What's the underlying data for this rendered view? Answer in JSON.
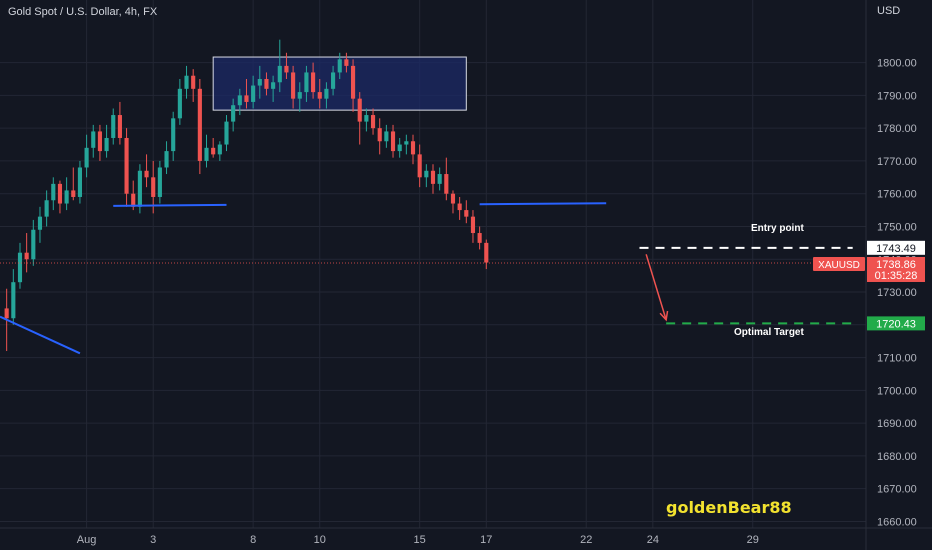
{
  "header": {
    "title": "Gold Spot / U.S. Dollar, 4h, FX",
    "currency": "USD"
  },
  "watermark": "goldenBear88",
  "annotations": {
    "entry_label": "Entry point",
    "target_label": "Optimal Target"
  },
  "badges": {
    "entry_price": "1743.49",
    "symbol": "XAUUSD",
    "last_price": "1738.86",
    "countdown": "01:35:28",
    "target_price": "1720.43"
  },
  "colors": {
    "background": "#131722",
    "grid": "#232734",
    "bull": "#26a69a",
    "bear": "#ef5350",
    "zone_fill": "#1c2a66",
    "zone_border": "#d9dce6",
    "support_line": "#2962ff",
    "entry_line": "#ffffff",
    "target_line": "#22ab4a",
    "arrow": "#ef5350",
    "axis_text": "#b2b5be"
  },
  "chart_data": {
    "type": "candlestick",
    "title": "Gold Spot / U.S. Dollar, 4h, FX",
    "ylim": [
      1658,
      1813
    ],
    "yticks": [
      1660,
      1670,
      1680,
      1690,
      1700,
      1710,
      1720,
      1730,
      1740,
      1750,
      1760,
      1770,
      1780,
      1790,
      1800
    ],
    "x_range_bars": [
      0,
      130
    ],
    "xticks": [
      {
        "label": "Aug",
        "bar": 13
      },
      {
        "label": "3",
        "bar": 23
      },
      {
        "label": "8",
        "bar": 38
      },
      {
        "label": "10",
        "bar": 48
      },
      {
        "label": "15",
        "bar": 63
      },
      {
        "label": "17",
        "bar": 73
      },
      {
        "label": "22",
        "bar": 88
      },
      {
        "label": "24",
        "bar": 98
      },
      {
        "label": "29",
        "bar": 113
      }
    ],
    "candles": [
      [
        1725,
        1731,
        1712,
        1722
      ],
      [
        1722,
        1737,
        1720,
        1733
      ],
      [
        1733,
        1745,
        1731,
        1742
      ],
      [
        1742,
        1748,
        1736,
        1740
      ],
      [
        1740,
        1752,
        1738,
        1749
      ],
      [
        1749,
        1756,
        1745,
        1753
      ],
      [
        1753,
        1761,
        1750,
        1758
      ],
      [
        1758,
        1765,
        1755,
        1763
      ],
      [
        1763,
        1764,
        1754,
        1757
      ],
      [
        1757,
        1765,
        1755,
        1761
      ],
      [
        1761,
        1768,
        1758,
        1759
      ],
      [
        1759,
        1770,
        1757,
        1768
      ],
      [
        1768,
        1778,
        1765,
        1774
      ],
      [
        1774,
        1781,
        1771,
        1779
      ],
      [
        1779,
        1781,
        1770,
        1773
      ],
      [
        1773,
        1781,
        1771,
        1777
      ],
      [
        1777,
        1786,
        1775,
        1784
      ],
      [
        1784,
        1788,
        1775,
        1777
      ],
      [
        1777,
        1780,
        1756,
        1760
      ],
      [
        1760,
        1764,
        1755,
        1756
      ],
      [
        1756,
        1769,
        1754,
        1767
      ],
      [
        1767,
        1772,
        1762,
        1765
      ],
      [
        1765,
        1770,
        1754,
        1759
      ],
      [
        1759,
        1770,
        1757,
        1768
      ],
      [
        1768,
        1776,
        1766,
        1773
      ],
      [
        1773,
        1785,
        1770,
        1783
      ],
      [
        1783,
        1795,
        1781,
        1792
      ],
      [
        1792,
        1799,
        1789,
        1796
      ],
      [
        1796,
        1798,
        1788,
        1792
      ],
      [
        1792,
        1795,
        1766,
        1770
      ],
      [
        1770,
        1778,
        1768,
        1774
      ],
      [
        1774,
        1777,
        1771,
        1772
      ],
      [
        1772,
        1776,
        1770,
        1775
      ],
      [
        1775,
        1784,
        1773,
        1782
      ],
      [
        1782,
        1789,
        1779,
        1787
      ],
      [
        1787,
        1792,
        1784,
        1790
      ],
      [
        1790,
        1795,
        1786,
        1788
      ],
      [
        1788,
        1796,
        1786,
        1793
      ],
      [
        1793,
        1799,
        1789,
        1795
      ],
      [
        1795,
        1797,
        1790,
        1792
      ],
      [
        1792,
        1796,
        1788,
        1794
      ],
      [
        1794,
        1807,
        1791,
        1799
      ],
      [
        1799,
        1803,
        1795,
        1797
      ],
      [
        1797,
        1799,
        1786,
        1789
      ],
      [
        1789,
        1794,
        1785,
        1791
      ],
      [
        1791,
        1799,
        1788,
        1797
      ],
      [
        1797,
        1800,
        1789,
        1791
      ],
      [
        1791,
        1795,
        1786,
        1789
      ],
      [
        1789,
        1794,
        1786,
        1792
      ],
      [
        1792,
        1799,
        1790,
        1797
      ],
      [
        1797,
        1803,
        1795,
        1801
      ],
      [
        1801,
        1803,
        1797,
        1799
      ],
      [
        1799,
        1801,
        1785,
        1789
      ],
      [
        1789,
        1791,
        1775,
        1782
      ],
      [
        1782,
        1786,
        1779,
        1784
      ],
      [
        1784,
        1786,
        1778,
        1780
      ],
      [
        1780,
        1783,
        1772,
        1776
      ],
      [
        1776,
        1781,
        1774,
        1779
      ],
      [
        1779,
        1781,
        1771,
        1773
      ],
      [
        1773,
        1777,
        1771,
        1775
      ],
      [
        1775,
        1778,
        1772,
        1776
      ],
      [
        1776,
        1778,
        1769,
        1772
      ],
      [
        1772,
        1775,
        1762,
        1765
      ],
      [
        1765,
        1769,
        1762,
        1767
      ],
      [
        1767,
        1769,
        1760,
        1763
      ],
      [
        1763,
        1768,
        1761,
        1766
      ],
      [
        1766,
        1771,
        1758,
        1760
      ],
      [
        1760,
        1761,
        1754,
        1757
      ],
      [
        1757,
        1759,
        1752,
        1755
      ],
      [
        1755,
        1758,
        1751,
        1753
      ],
      [
        1753,
        1755,
        1745,
        1748
      ],
      [
        1748,
        1750,
        1743,
        1745
      ],
      [
        1745,
        1746,
        1737,
        1739
      ]
    ],
    "candle_start_bar": 1,
    "zone": {
      "bar_start": 32,
      "bar_end": 70,
      "price_low": 1785.5,
      "price_high": 1801.7
    },
    "support_lines": [
      {
        "bar_start": 17,
        "bar_end": 34,
        "price_start": 1756.3,
        "price_end": 1756.6
      },
      {
        "bar_start": 72,
        "bar_end": 91,
        "price_start": 1756.8,
        "price_end": 1757.1
      },
      {
        "bar_start": 0,
        "bar_end": 12,
        "price_start": 1722.5,
        "price_end": 1711.3
      }
    ],
    "entry": {
      "price": 1743.49,
      "bar_start": 96,
      "bar_end": 128
    },
    "target": {
      "price": 1720.43,
      "bar_start": 100,
      "bar_end": 128
    },
    "last_price": 1738.86,
    "arrow": {
      "bar_start": 97,
      "price_start": 1741.5,
      "bar_end": 100,
      "price_end": 1721.5
    }
  }
}
